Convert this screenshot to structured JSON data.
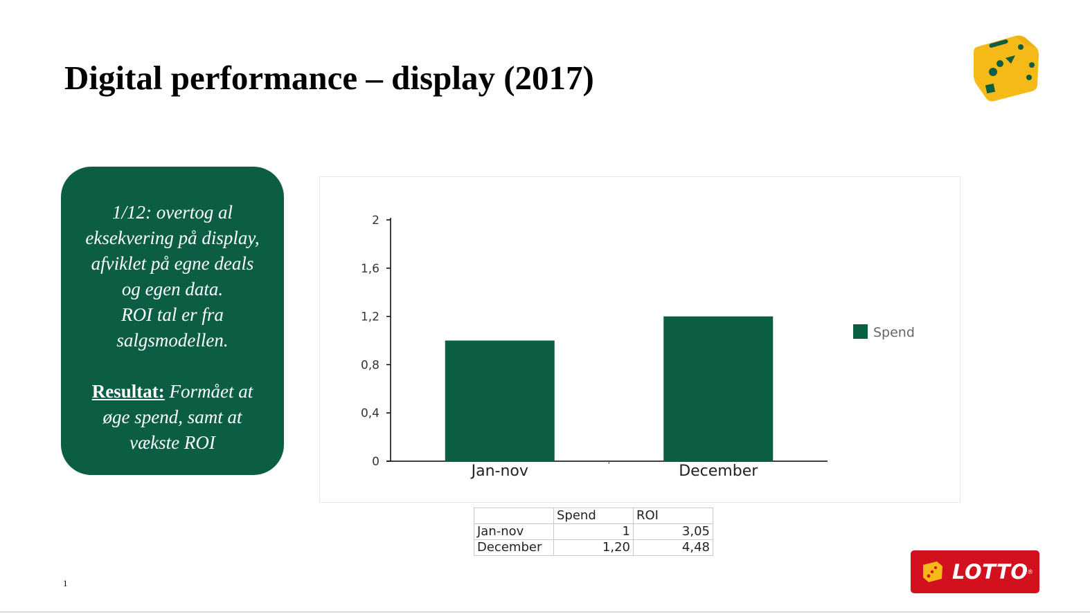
{
  "slide": {
    "title": "Digital performance – display (2017)",
    "page_number": "1"
  },
  "note": {
    "lines": [
      "1/12: overtog al",
      "eksekvering på display,",
      "afviklet på egne deals",
      "og egen data.",
      "ROI tal er fra",
      "salgsmodellen."
    ],
    "result_label": "Resultat:",
    "result_text_1": " Formået at",
    "result_text_2": "øge spend, samt at",
    "result_text_3": "vækste ROI"
  },
  "chart_data": {
    "type": "bar",
    "categories": [
      "Jan-nov",
      "December"
    ],
    "series": [
      {
        "name": "Spend",
        "values": [
          1,
          1.2
        ],
        "color": "#0b5e44"
      }
    ],
    "ylim": [
      0,
      2
    ],
    "yticks": [
      "0",
      "0,4",
      "0,8",
      "1,2",
      "1,6",
      "2"
    ],
    "legend_position": "right",
    "grid": false
  },
  "table": {
    "headers": [
      "",
      "Spend",
      "ROI"
    ],
    "rows": [
      [
        "Jan-nov",
        "1",
        "3,05"
      ],
      [
        "December",
        "1,20",
        "4,48"
      ]
    ]
  },
  "brand": {
    "logo_text": "LOTTO",
    "logo_color": "#d2101e",
    "dice_color": "#f5b918",
    "accent_green": "#0b5e44"
  }
}
